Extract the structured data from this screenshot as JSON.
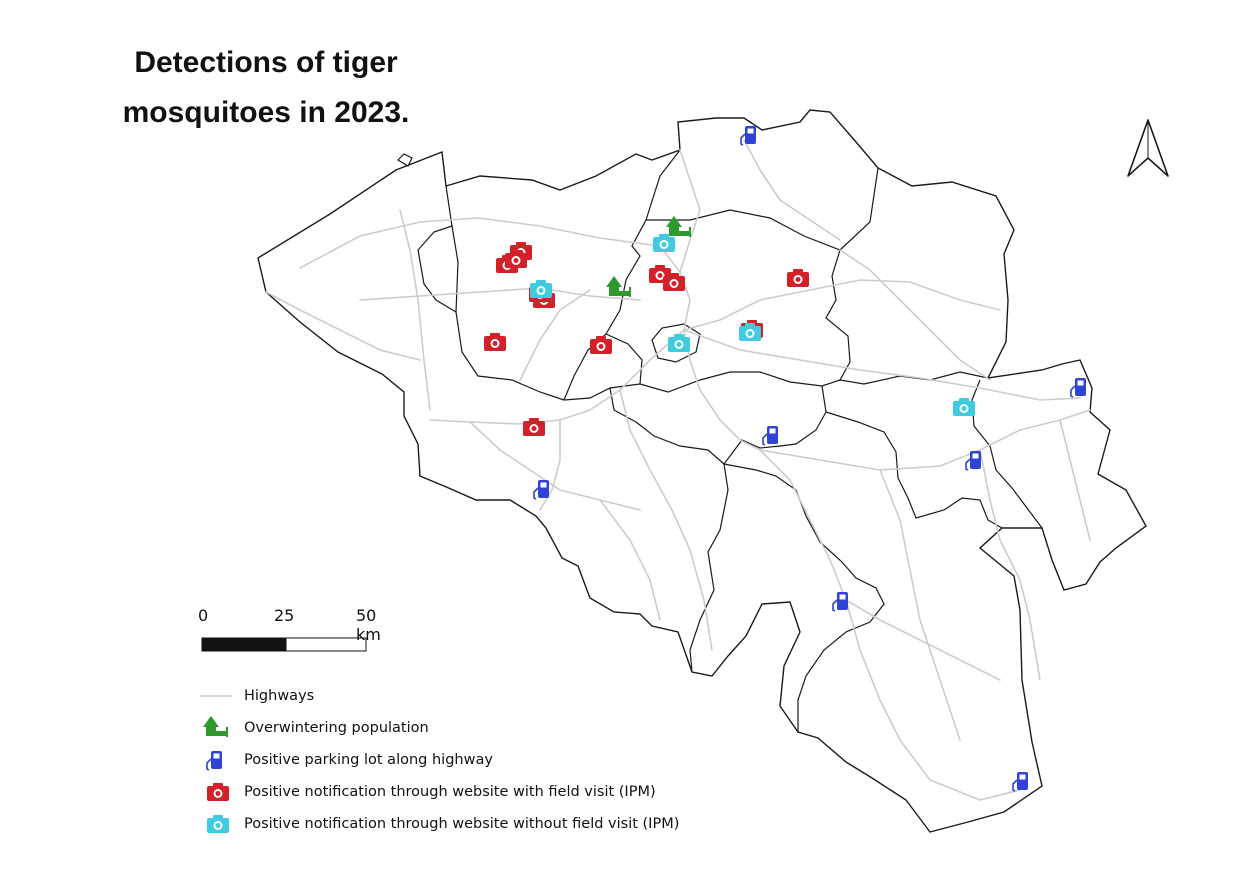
{
  "title": {
    "line1": "Detections of tiger",
    "line2": "mosquitoes in 2023."
  },
  "scale_bar": {
    "tick_0": "0",
    "tick_25": "25",
    "tick_50": "50 km"
  },
  "legend": {
    "highways": "Highways",
    "overwintering": "Overwintering population",
    "parking": "Positive parking lot along highway",
    "with_visit": "Positive notification through website with field visit (IPM)",
    "without_visit": "Positive notification through website without field visit (IPM)"
  },
  "colors": {
    "highway": "#cccccc",
    "border": "#1a1a1a",
    "overwintering": "#2e9a2e",
    "parking": "#2f43d6",
    "with_visit": "#d4202a",
    "without_visit": "#3fcbe0"
  },
  "icons": {
    "overwintering": "house-flag-icon",
    "parking": "fuel-pump-icon",
    "with_visit": "camera-icon",
    "without_visit": "camera-icon",
    "north": "north-arrow-icon"
  },
  "markers": {
    "overwintering_count": 2,
    "parking_count": 7,
    "with_visit_count": 12,
    "without_visit_count": 5
  }
}
